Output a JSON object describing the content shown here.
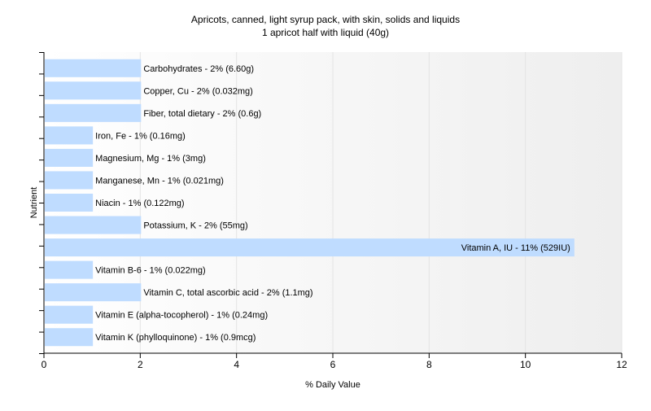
{
  "chart_data": {
    "type": "bar",
    "orientation": "horizontal",
    "title": "Apricots, canned, light syrup pack, with skin, solids and liquids",
    "subtitle": "1 apricot half with liquid (40g)",
    "xlabel": "% Daily Value",
    "ylabel": "Nutrient",
    "xlim": [
      0,
      12
    ],
    "xticks": [
      0,
      2,
      4,
      6,
      8,
      10,
      12
    ],
    "grid": true,
    "bar_color": "#bfdcff",
    "categories": [
      "Carbohydrates",
      "Copper, Cu",
      "Fiber, total dietary",
      "Iron, Fe",
      "Magnesium, Mg",
      "Manganese, Mn",
      "Niacin",
      "Potassium, K",
      "Vitamin A, IU",
      "Vitamin B-6",
      "Vitamin C, total ascorbic acid",
      "Vitamin E (alpha-tocopherol)",
      "Vitamin K (phylloquinone)"
    ],
    "values": [
      2,
      2,
      2,
      1,
      1,
      1,
      1,
      2,
      11,
      1,
      2,
      1,
      1
    ],
    "labels": [
      "Carbohydrates - 2% (6.60g)",
      "Copper, Cu - 2% (0.032mg)",
      "Fiber, total dietary - 2% (0.6g)",
      "Iron, Fe - 1% (0.16mg)",
      "Magnesium, Mg - 1% (3mg)",
      "Manganese, Mn - 1% (0.021mg)",
      "Niacin - 1% (0.122mg)",
      "Potassium, K - 2% (55mg)",
      "Vitamin A, IU - 11% (529IU)",
      "Vitamin B-6 - 1% (0.022mg)",
      "Vitamin C, total ascorbic acid - 2% (1.1mg)",
      "Vitamin E (alpha-tocopherol) - 1% (0.24mg)",
      "Vitamin K (phylloquinone) - 1% (0.9mcg)"
    ]
  }
}
